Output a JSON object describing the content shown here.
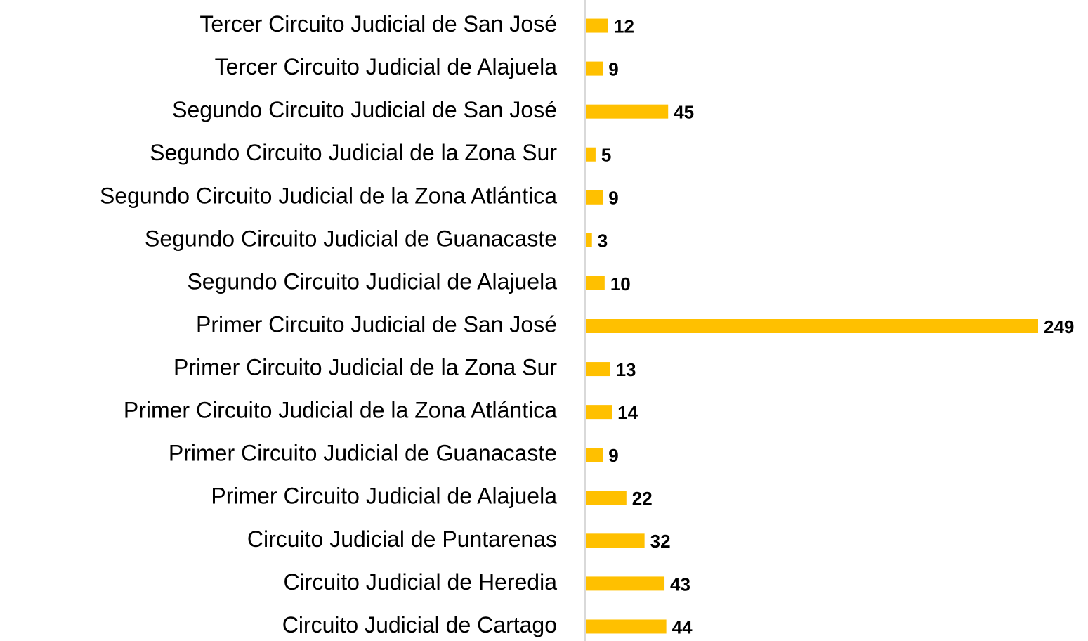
{
  "chart_data": {
    "type": "bar",
    "orientation": "horizontal",
    "color": "#FFC000",
    "categories": [
      "Tercer Circuito Judicial de San José",
      "Tercer Circuito Judicial de Alajuela",
      "Segundo Circuito Judicial de San José",
      "Segundo Circuito Judicial de la Zona Sur",
      "Segundo Circuito Judicial de la Zona Atlántica",
      "Segundo Circuito Judicial de Guanacaste",
      "Segundo Circuito Judicial de Alajuela",
      "Primer Circuito Judicial de San José",
      "Primer Circuito Judicial de la Zona Sur",
      "Primer Circuito Judicial de la Zona Atlántica",
      "Primer Circuito Judicial de Guanacaste",
      "Primer Circuito Judicial de Alajuela",
      "Circuito Judicial de Puntarenas",
      "Circuito Judicial de Heredia",
      "Circuito Judicial de Cartago"
    ],
    "values": [
      12,
      9,
      45,
      5,
      9,
      3,
      10,
      249,
      13,
      14,
      9,
      22,
      32,
      43,
      44
    ]
  }
}
